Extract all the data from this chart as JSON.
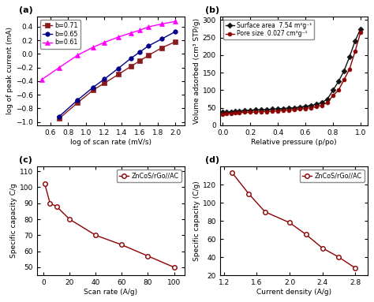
{
  "panel_a": {
    "title": "(a)",
    "xlabel": "log of scan rate (mV/s)",
    "ylabel": "log of peak current (mA)",
    "xlim": [
      0.45,
      2.1
    ],
    "ylim": [
      -1.05,
      0.55
    ],
    "xticks": [
      0.6,
      0.8,
      1.0,
      1.2,
      1.4,
      1.6,
      1.8,
      2.0
    ],
    "yticks": [
      -1.0,
      -0.8,
      -0.6,
      -0.4,
      -0.2,
      0.0,
      0.2,
      0.4
    ],
    "series": [
      {
        "label": "b=0.71",
        "color": "#8B1A1A",
        "marker": "s",
        "markersize": 4.0,
        "x": [
          0.699,
          0.903,
          1.079,
          1.204,
          1.362,
          1.505,
          1.602,
          1.699,
          1.845,
          2.0
        ],
        "y": [
          -0.95,
          -0.72,
          -0.53,
          -0.43,
          -0.3,
          -0.18,
          -0.1,
          -0.02,
          0.09,
          0.18
        ]
      },
      {
        "label": "b=0.65",
        "color": "#00008B",
        "marker": "o",
        "markersize": 4.0,
        "x": [
          0.699,
          0.903,
          1.079,
          1.204,
          1.362,
          1.505,
          1.602,
          1.699,
          1.845,
          2.0
        ],
        "y": [
          -0.92,
          -0.68,
          -0.49,
          -0.37,
          -0.21,
          -0.06,
          0.03,
          0.12,
          0.22,
          0.33
        ]
      },
      {
        "label": "b=0.61",
        "color": "#FF00FF",
        "marker": "^",
        "markersize": 4.5,
        "x": [
          0.5,
          0.699,
          0.903,
          1.079,
          1.204,
          1.362,
          1.505,
          1.602,
          1.699,
          1.845,
          2.0
        ],
        "y": [
          -0.38,
          -0.2,
          -0.02,
          0.1,
          0.17,
          0.25,
          0.31,
          0.35,
          0.4,
          0.44,
          0.48
        ]
      }
    ]
  },
  "panel_b": {
    "title": "(b)",
    "xlabel": "Relative pressure (p/po)",
    "ylabel": "Volume adsorbed (cm³ STP/g)",
    "xlim": [
      -0.02,
      1.05
    ],
    "ylim": [
      0,
      310
    ],
    "xticks": [
      0.0,
      0.2,
      0.4,
      0.6,
      0.8,
      1.0
    ],
    "yticks": [
      0,
      50,
      100,
      150,
      200,
      250,
      300
    ],
    "series": [
      {
        "label": "Surface area  7.54 m²g⁻¹",
        "color": "#111111",
        "marker": "D",
        "markersize": 3.5,
        "x": [
          0.0,
          0.03,
          0.06,
          0.09,
          0.12,
          0.16,
          0.2,
          0.24,
          0.28,
          0.32,
          0.36,
          0.4,
          0.44,
          0.48,
          0.52,
          0.56,
          0.6,
          0.64,
          0.68,
          0.72,
          0.76,
          0.8,
          0.84,
          0.88,
          0.92,
          0.96,
          1.0
        ],
        "y": [
          37,
          38,
          39,
          40,
          41,
          42,
          43,
          44,
          44,
          45,
          46,
          47,
          48,
          49,
          50,
          52,
          54,
          57,
          60,
          65,
          75,
          100,
          125,
          155,
          195,
          240,
          275
        ]
      },
      {
        "label": "Pore size  0.027 cm³g⁻¹",
        "color": "#8B0000",
        "marker": "o",
        "markersize": 3.5,
        "x": [
          0.0,
          0.03,
          0.06,
          0.09,
          0.12,
          0.16,
          0.2,
          0.24,
          0.28,
          0.32,
          0.36,
          0.4,
          0.44,
          0.48,
          0.52,
          0.56,
          0.6,
          0.64,
          0.68,
          0.72,
          0.76,
          0.8,
          0.84,
          0.88,
          0.92,
          0.96,
          1.0
        ],
        "y": [
          32,
          33,
          34,
          35,
          36,
          37,
          37,
          38,
          39,
          39,
          40,
          41,
          42,
          43,
          44,
          46,
          48,
          50,
          53,
          57,
          65,
          85,
          100,
          130,
          160,
          210,
          265
        ]
      }
    ]
  },
  "panel_c": {
    "title": "(c)",
    "xlabel": "Scan rate (A/g)",
    "ylabel": "Specific capacity C/g",
    "xlim": [
      -5,
      108
    ],
    "ylim": [
      45,
      113
    ],
    "xticks": [
      0,
      20,
      40,
      60,
      80,
      100
    ],
    "yticks": [
      50,
      60,
      70,
      80,
      90,
      100,
      110
    ],
    "label": "ZnCoS/rGo//AC",
    "color": "#8B0000",
    "marker": "o",
    "markersize": 4.0,
    "x": [
      1,
      5,
      10,
      20,
      40,
      60,
      80,
      100
    ],
    "y": [
      102,
      90,
      88,
      80,
      70,
      64,
      57,
      50
    ]
  },
  "panel_d": {
    "title": "(d)",
    "xlabel": "Current density (A/g)",
    "ylabel": "Specific capacity (C/g)",
    "xlim": [
      1.15,
      2.95
    ],
    "ylim": [
      20,
      140
    ],
    "xticks": [
      1.2,
      1.6,
      2.0,
      2.4,
      2.8
    ],
    "yticks": [
      20,
      40,
      60,
      80,
      100,
      120
    ],
    "label": "ZnCoS/rGo//AC",
    "color": "#8B0000",
    "marker": "o",
    "markersize": 4.0,
    "x": [
      1.3,
      1.5,
      1.7,
      2.0,
      2.2,
      2.4,
      2.6,
      2.8
    ],
    "y": [
      133,
      110,
      90,
      78,
      65,
      50,
      40,
      28
    ]
  }
}
